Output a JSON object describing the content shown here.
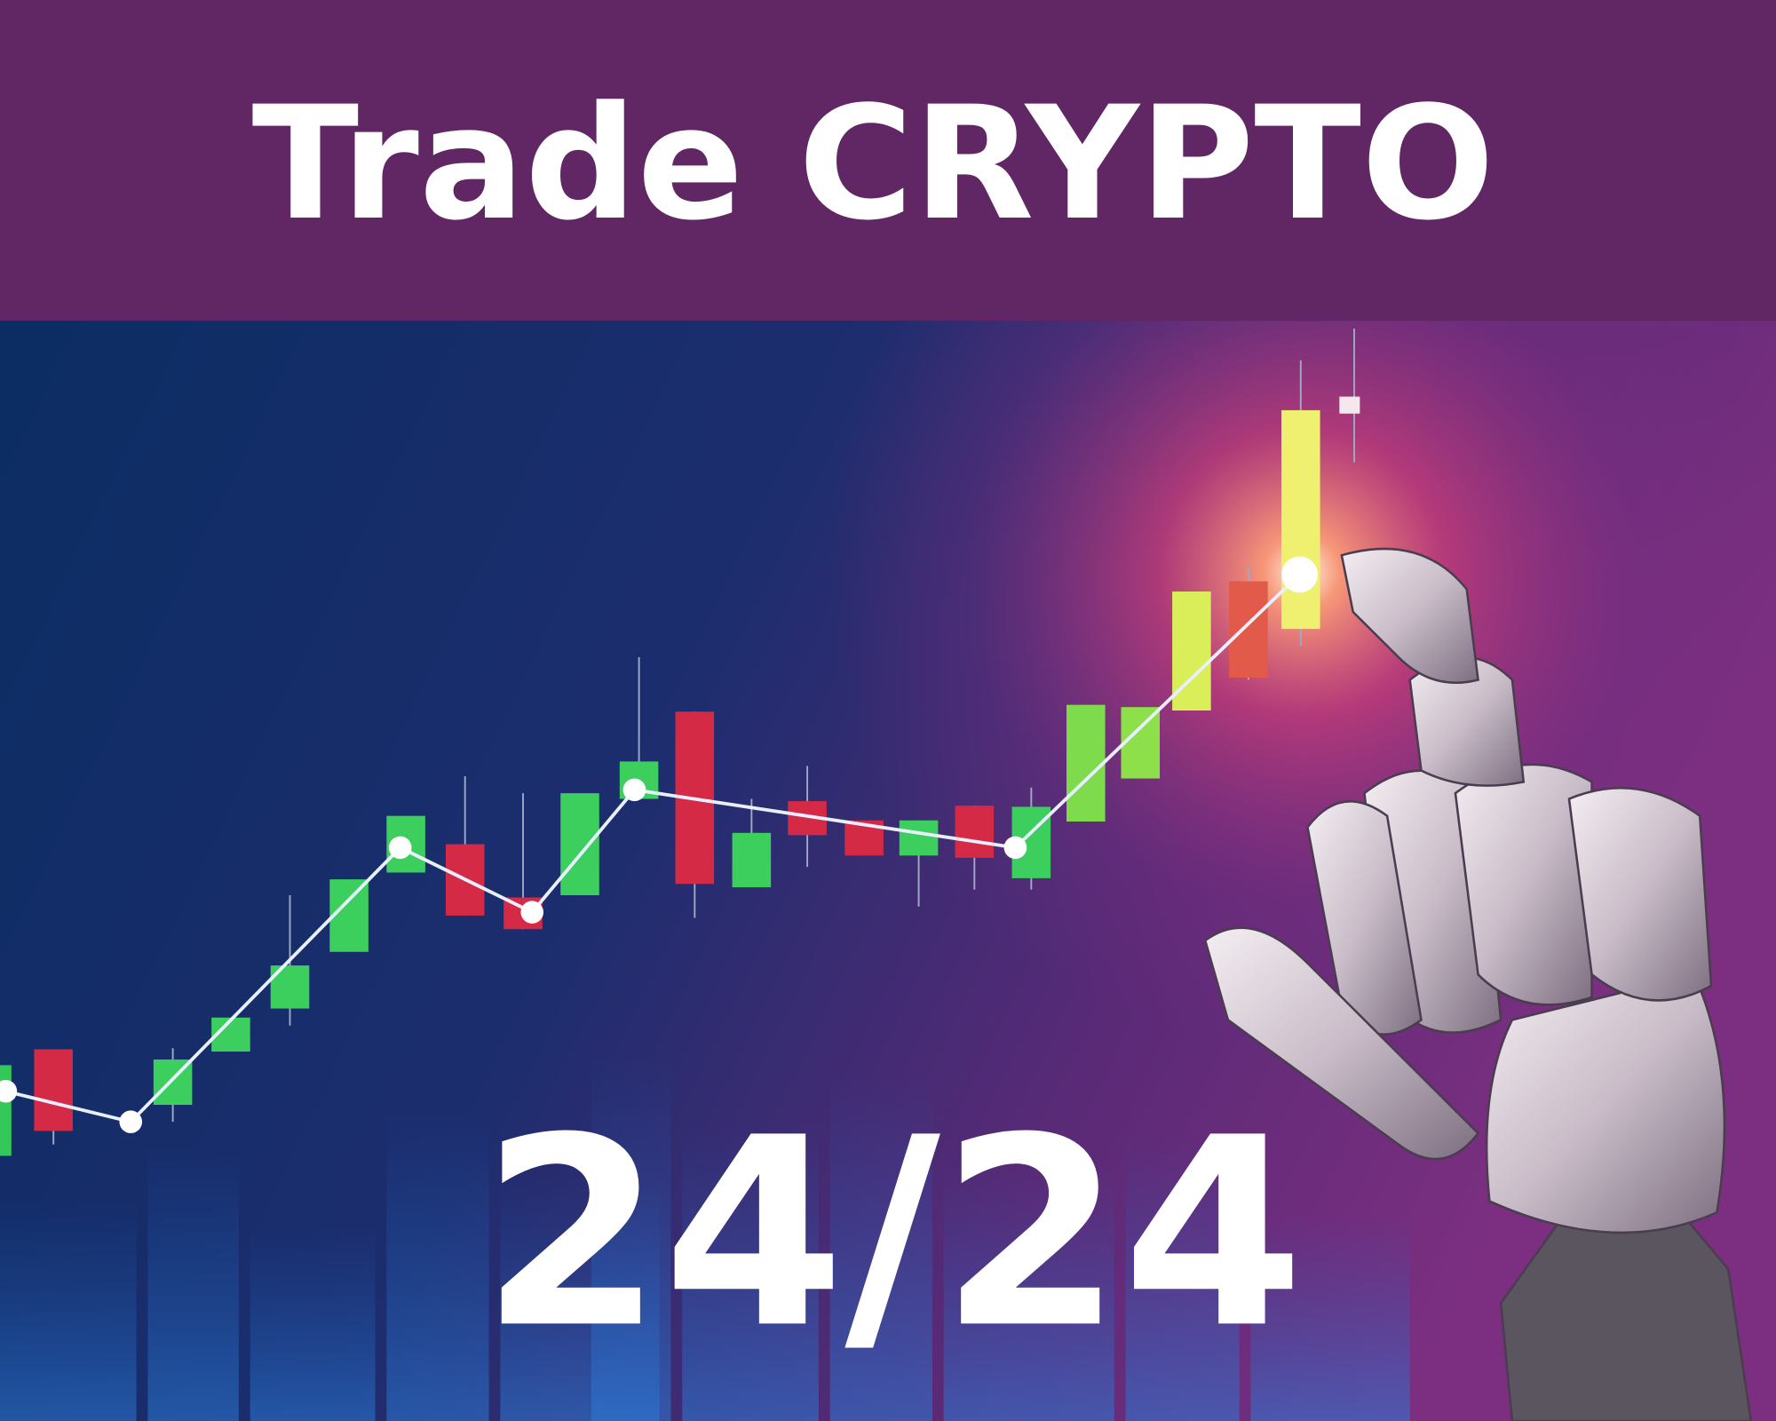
{
  "header": {
    "title": "Trade CRYPTO"
  },
  "banner": {
    "text": "24/24"
  }
}
